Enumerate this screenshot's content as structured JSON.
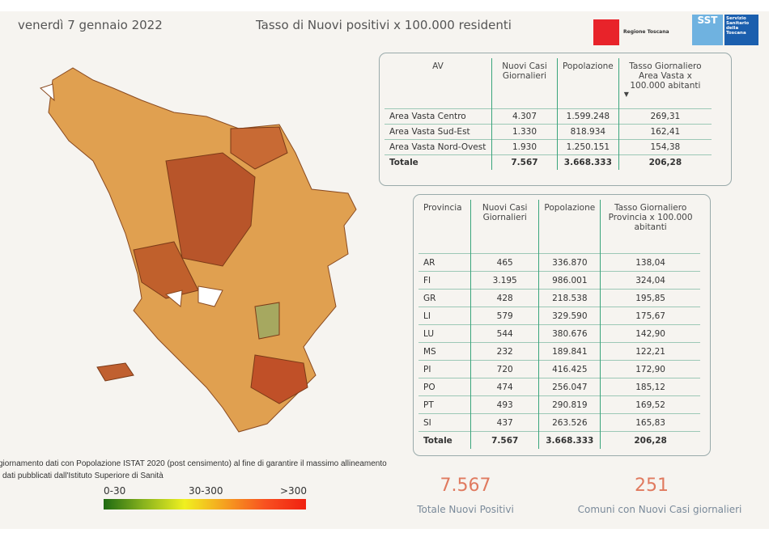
{
  "header": {
    "date": "venerdì 7 gennaio 2022",
    "title": "Tasso di Nuovi positivi x 100.000 residenti",
    "logo_regione": "Regione Toscana",
    "logo_sst": "SST",
    "logo_sst_text": "Servizio Sanitario della Toscana"
  },
  "av_table": {
    "headers": [
      "AV",
      "Nuovi Casi Giornalieri",
      "Popolazione",
      "Tasso Giornaliero Area Vasta x 100.000 abitanti"
    ],
    "rows": [
      [
        "Area Vasta Centro",
        "4.307",
        "1.599.248",
        "269,31"
      ],
      [
        "Area Vasta Sud-Est",
        "1.330",
        "818.934",
        "162,41"
      ],
      [
        "Area Vasta Nord-Ovest",
        "1.930",
        "1.250.151",
        "154,38"
      ]
    ],
    "total": [
      "Totale",
      "7.567",
      "3.668.333",
      "206,28"
    ]
  },
  "prov_table": {
    "headers": [
      "Provincia",
      "Nuovi Casi Giornalieri",
      "Popolazione",
      "Tasso Giornaliero Provincia x 100.000 abitanti"
    ],
    "rows": [
      [
        "AR",
        "465",
        "336.870",
        "138,04"
      ],
      [
        "FI",
        "3.195",
        "986.001",
        "324,04"
      ],
      [
        "GR",
        "428",
        "218.538",
        "195,85"
      ],
      [
        "LI",
        "579",
        "329.590",
        "175,67"
      ],
      [
        "LU",
        "544",
        "380.676",
        "142,90"
      ],
      [
        "MS",
        "232",
        "189.841",
        "122,21"
      ],
      [
        "PI",
        "720",
        "416.425",
        "172,90"
      ],
      [
        "PO",
        "474",
        "256.047",
        "185,12"
      ],
      [
        "PT",
        "493",
        "290.819",
        "169,52"
      ],
      [
        "SI",
        "437",
        "263.526",
        "165,83"
      ]
    ],
    "total": [
      "Totale",
      "7.567",
      "3.668.333",
      "206,28"
    ]
  },
  "note": {
    "line1": "giornamento dati con Popolazione ISTAT 2020 (post censimento) al fine di garantire il massimo allineamento",
    "line2": "i dati pubblicati dall'Istituto Superiore di Sanità"
  },
  "legend": {
    "low": "0-30",
    "mid": "30-300",
    "high": ">300"
  },
  "kpis": [
    {
      "value": "7.567",
      "label": "Totale Nuovi Positivi"
    },
    {
      "value": "251",
      "label": "Comuni con Nuovi Casi giornalieri"
    }
  ]
}
